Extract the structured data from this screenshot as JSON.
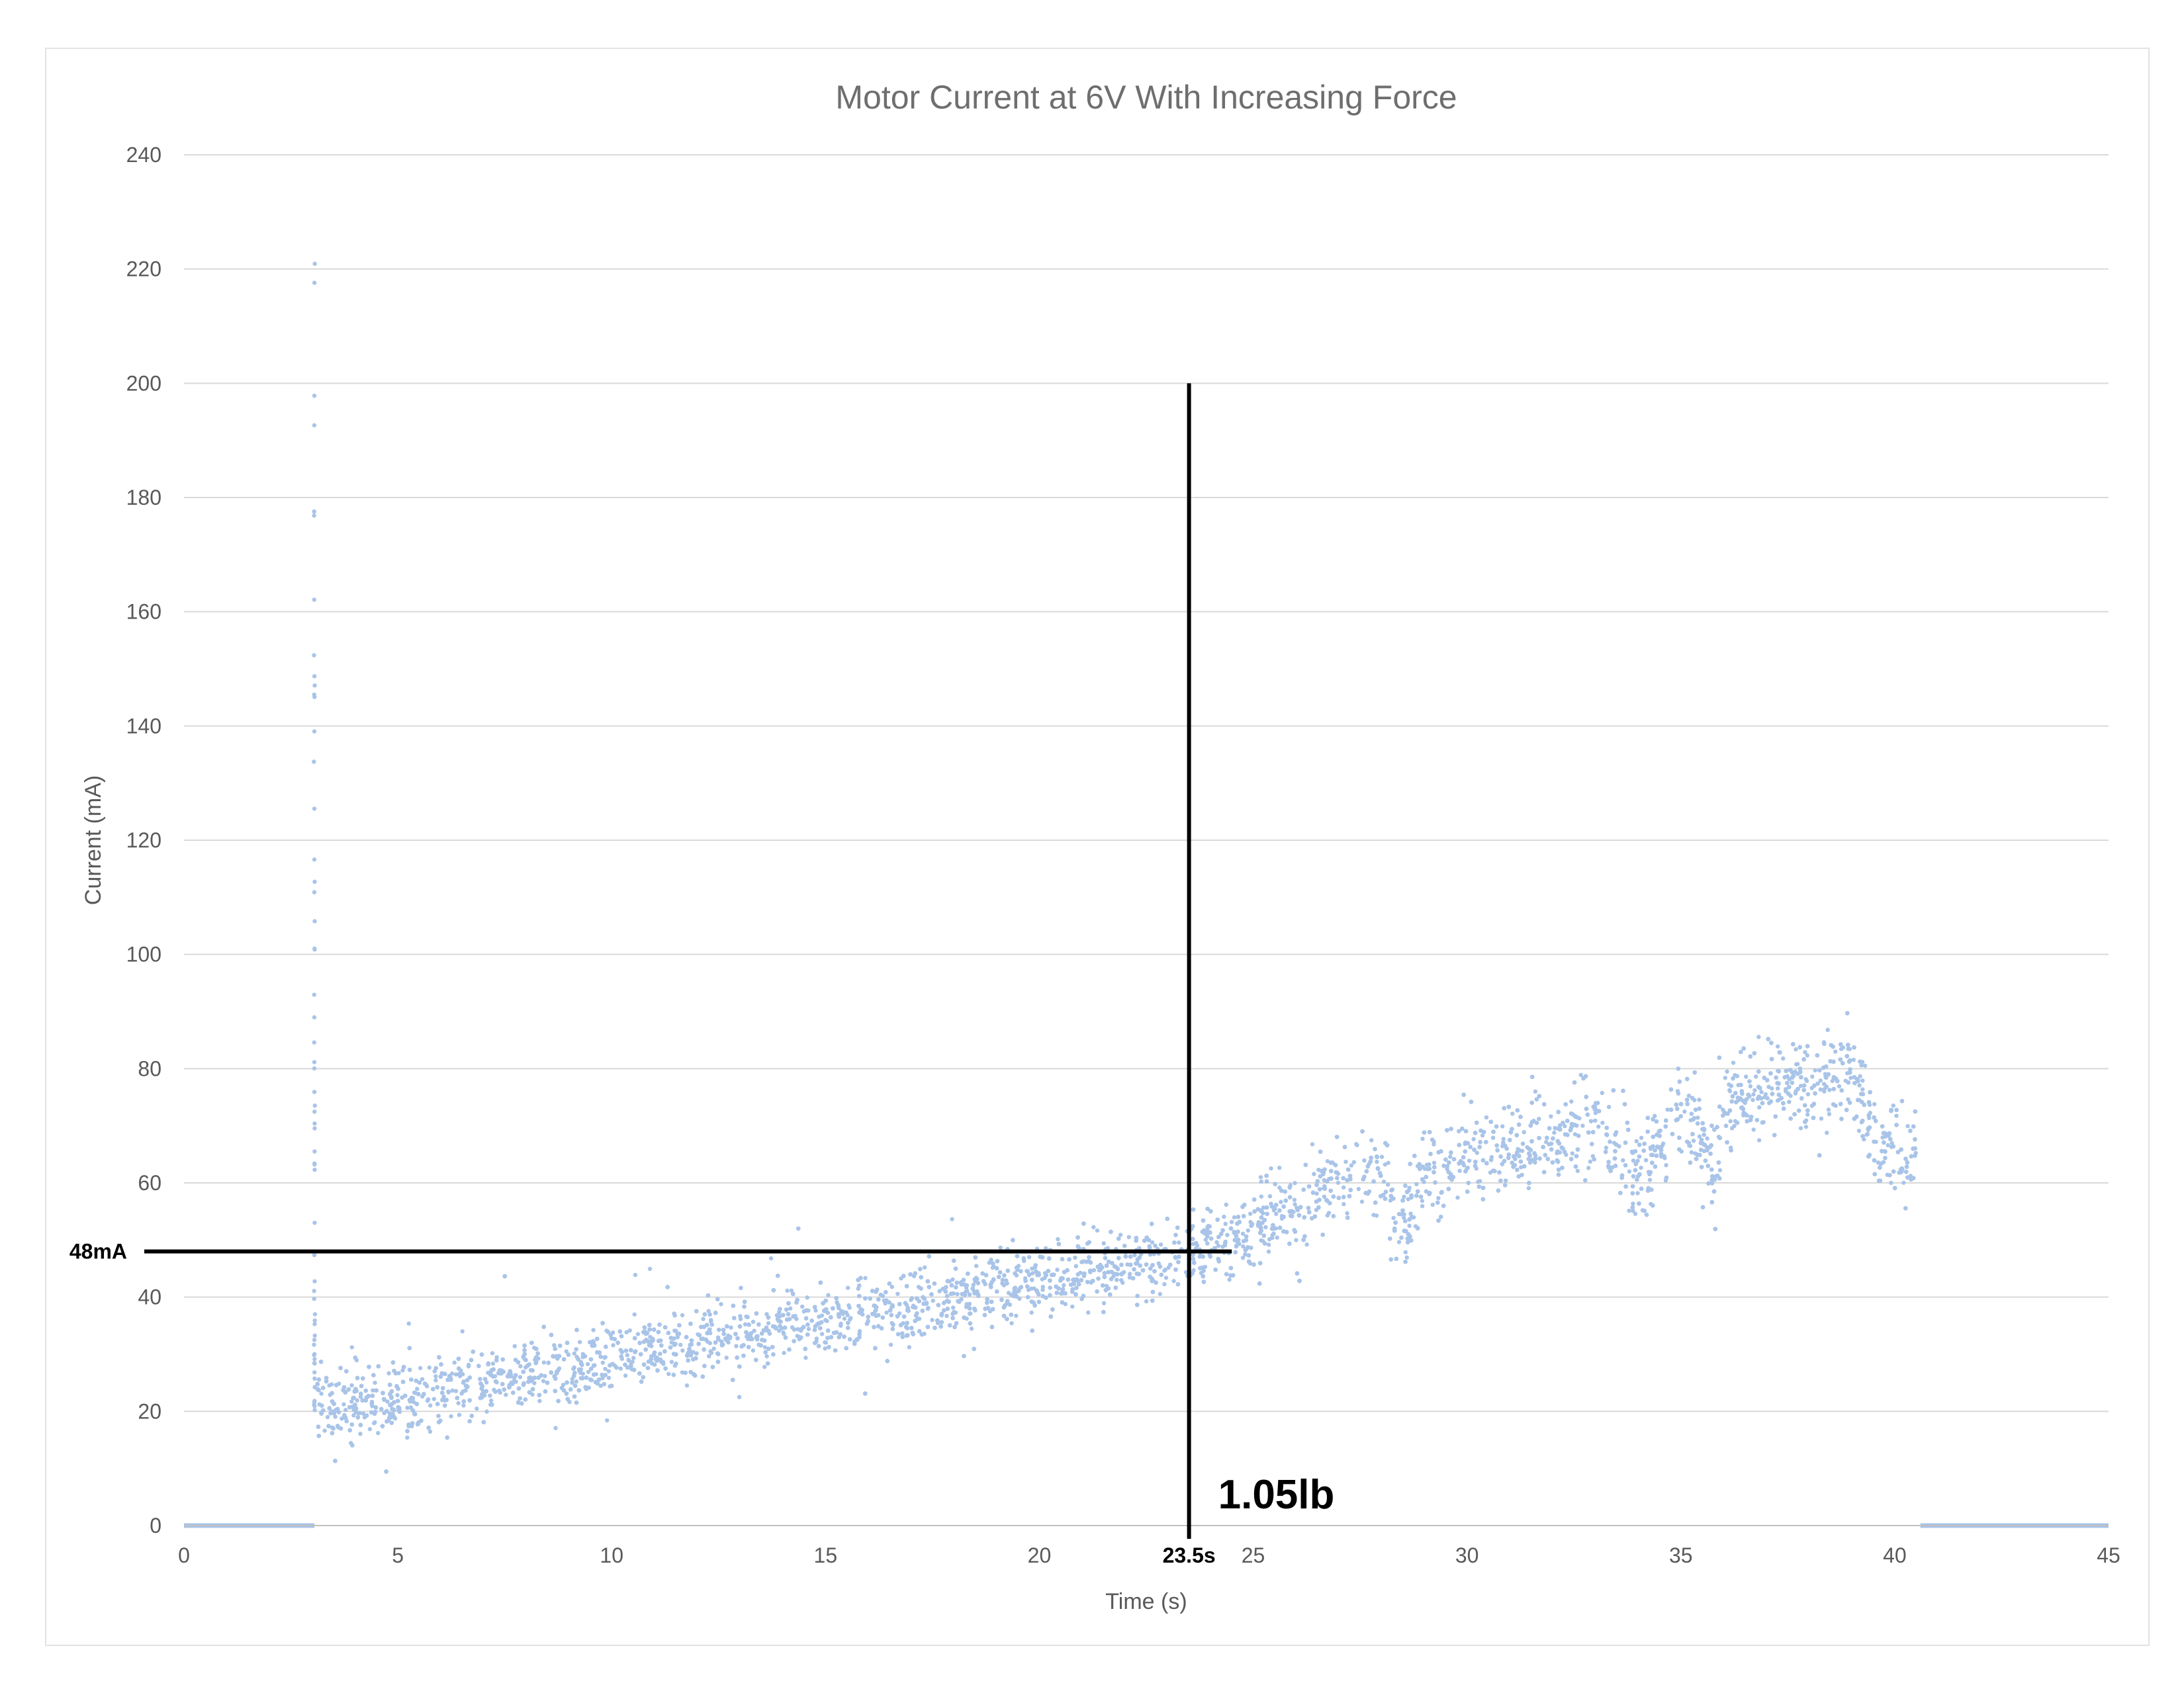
{
  "chart_data": {
    "type": "scatter",
    "title": "Motor Current at 6V With Increasing Force",
    "xlabel": "Time (s)",
    "ylabel": "Current  (mA)",
    "xlim": [
      0,
      45
    ],
    "ylim": [
      0,
      240
    ],
    "xticks": [
      0,
      5,
      10,
      15,
      20,
      25,
      30,
      35,
      40,
      45
    ],
    "yticks": [
      0,
      20,
      40,
      60,
      80,
      100,
      120,
      140,
      160,
      180,
      200,
      220,
      240
    ],
    "grid": "horizontal",
    "legend": "none",
    "series_color": "#a9c4e8",
    "series": [
      {
        "x": [
          0,
          3.05,
          3.05,
          3.1,
          3.5,
          4,
          5,
          6,
          7,
          8,
          9,
          10,
          11,
          12,
          13,
          14,
          15,
          16,
          17,
          18,
          19,
          20,
          21,
          22,
          23,
          24,
          25,
          26,
          27,
          28,
          28.5,
          29,
          30,
          31,
          32,
          33,
          34,
          35,
          35.8,
          36,
          37,
          38,
          39,
          39.5,
          40,
          40.5,
          40.6,
          41,
          45
        ],
        "y": [
          0,
          0,
          224,
          22,
          21,
          22,
          22,
          23,
          25,
          27,
          28,
          30,
          31,
          32,
          33,
          35,
          36,
          37,
          38,
          40,
          41,
          43,
          44,
          45,
          47,
          49,
          52,
          56,
          60,
          62,
          52,
          61,
          64,
          66,
          69,
          70,
          60,
          73,
          62,
          74,
          77,
          78,
          80,
          68,
          66,
          64,
          0,
          0,
          0
        ]
      }
    ],
    "annotations": {
      "vertical_line": {
        "x": 23.5,
        "y_top": 200,
        "x_label": "23.5s"
      },
      "horizontal_line": {
        "y": 48,
        "x_end": 24.5,
        "y_label": "48mA"
      },
      "force_label": "1.05lb"
    }
  }
}
